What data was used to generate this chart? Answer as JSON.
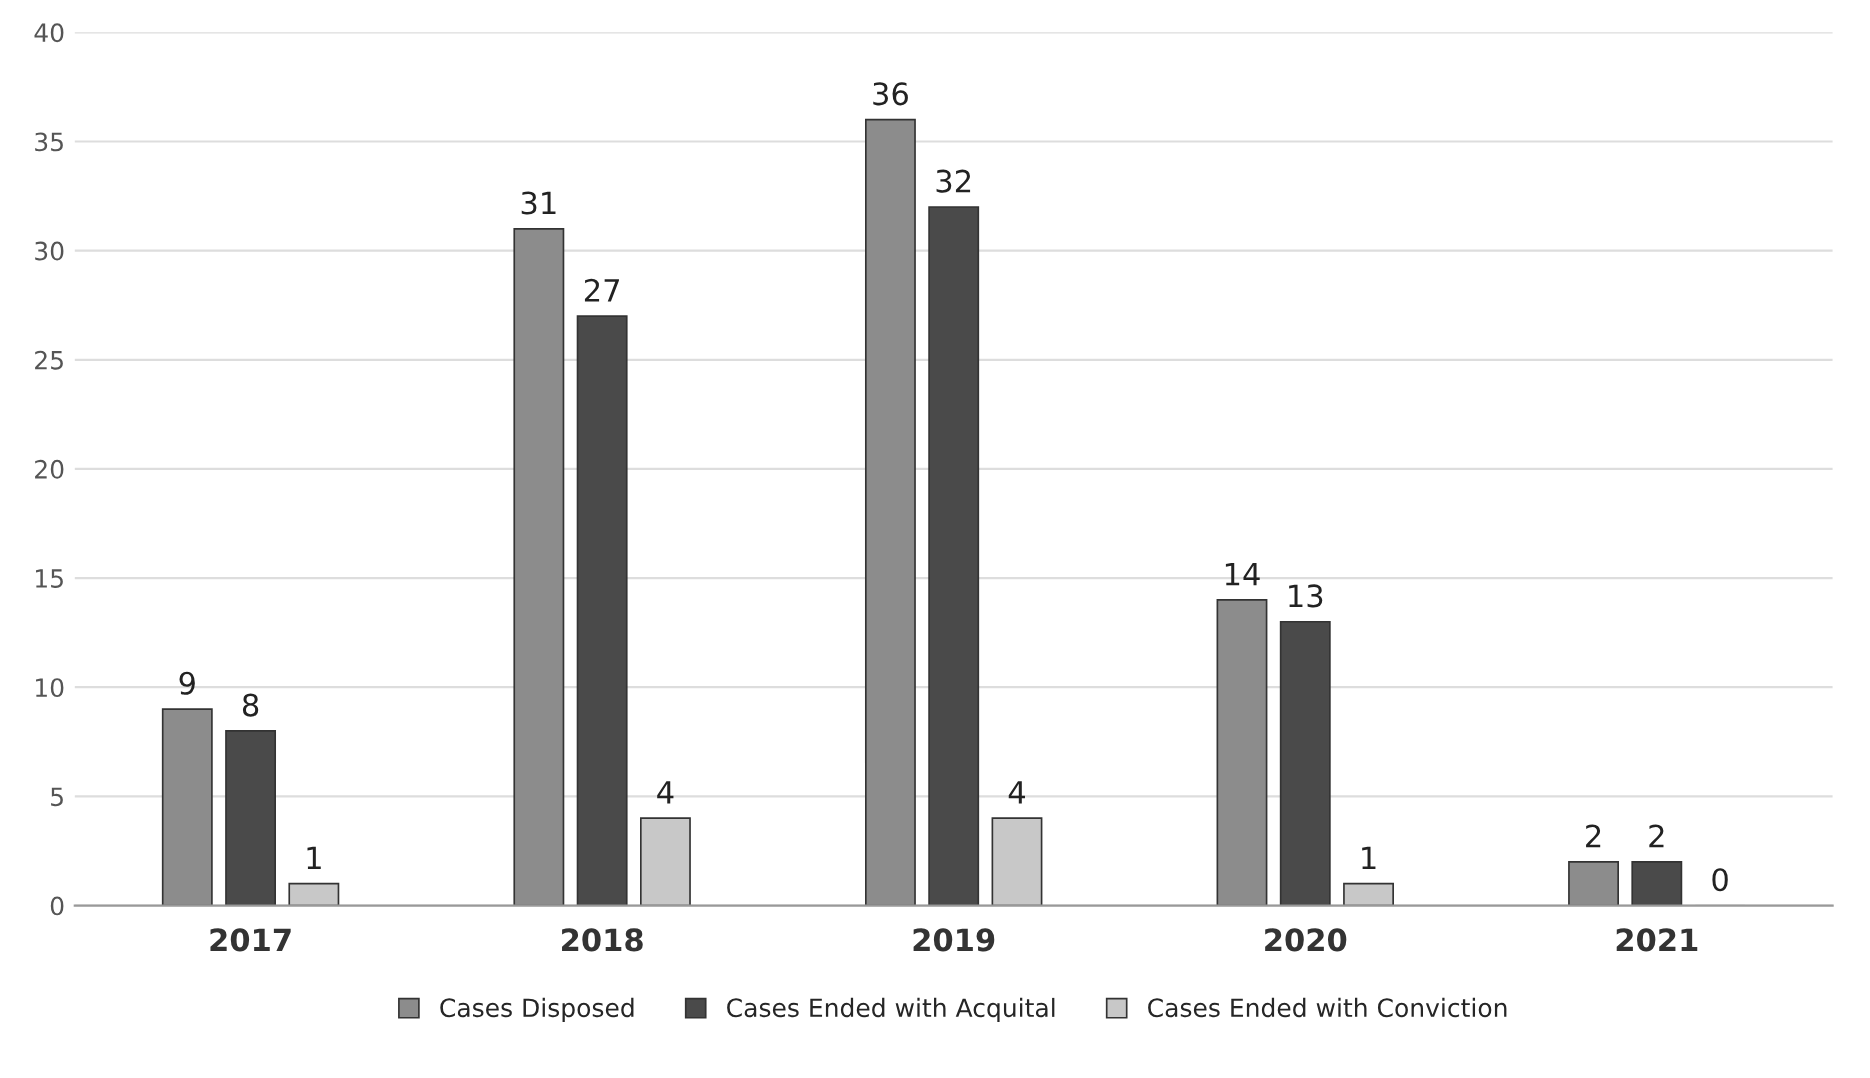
{
  "chart_data": {
    "type": "bar",
    "categories": [
      "2017",
      "2018",
      "2019",
      "2020",
      "2021"
    ],
    "series": [
      {
        "name": "Cases Disposed",
        "color": "#8c8c8c",
        "values": [
          9,
          31,
          36,
          14,
          2
        ]
      },
      {
        "name": "Cases Ended with Acquital",
        "color": "#4a4a4a",
        "values": [
          8,
          27,
          32,
          13,
          2
        ]
      },
      {
        "name": "Cases Ended with Conviction",
        "color": "#c8c8c8",
        "values": [
          1,
          4,
          4,
          1,
          0
        ]
      }
    ],
    "ylim": [
      0,
      40
    ],
    "yticks": [
      0,
      5,
      10,
      15,
      20,
      25,
      30,
      35,
      40
    ],
    "grid": "y",
    "legend": "bottom",
    "data_labels": true
  }
}
